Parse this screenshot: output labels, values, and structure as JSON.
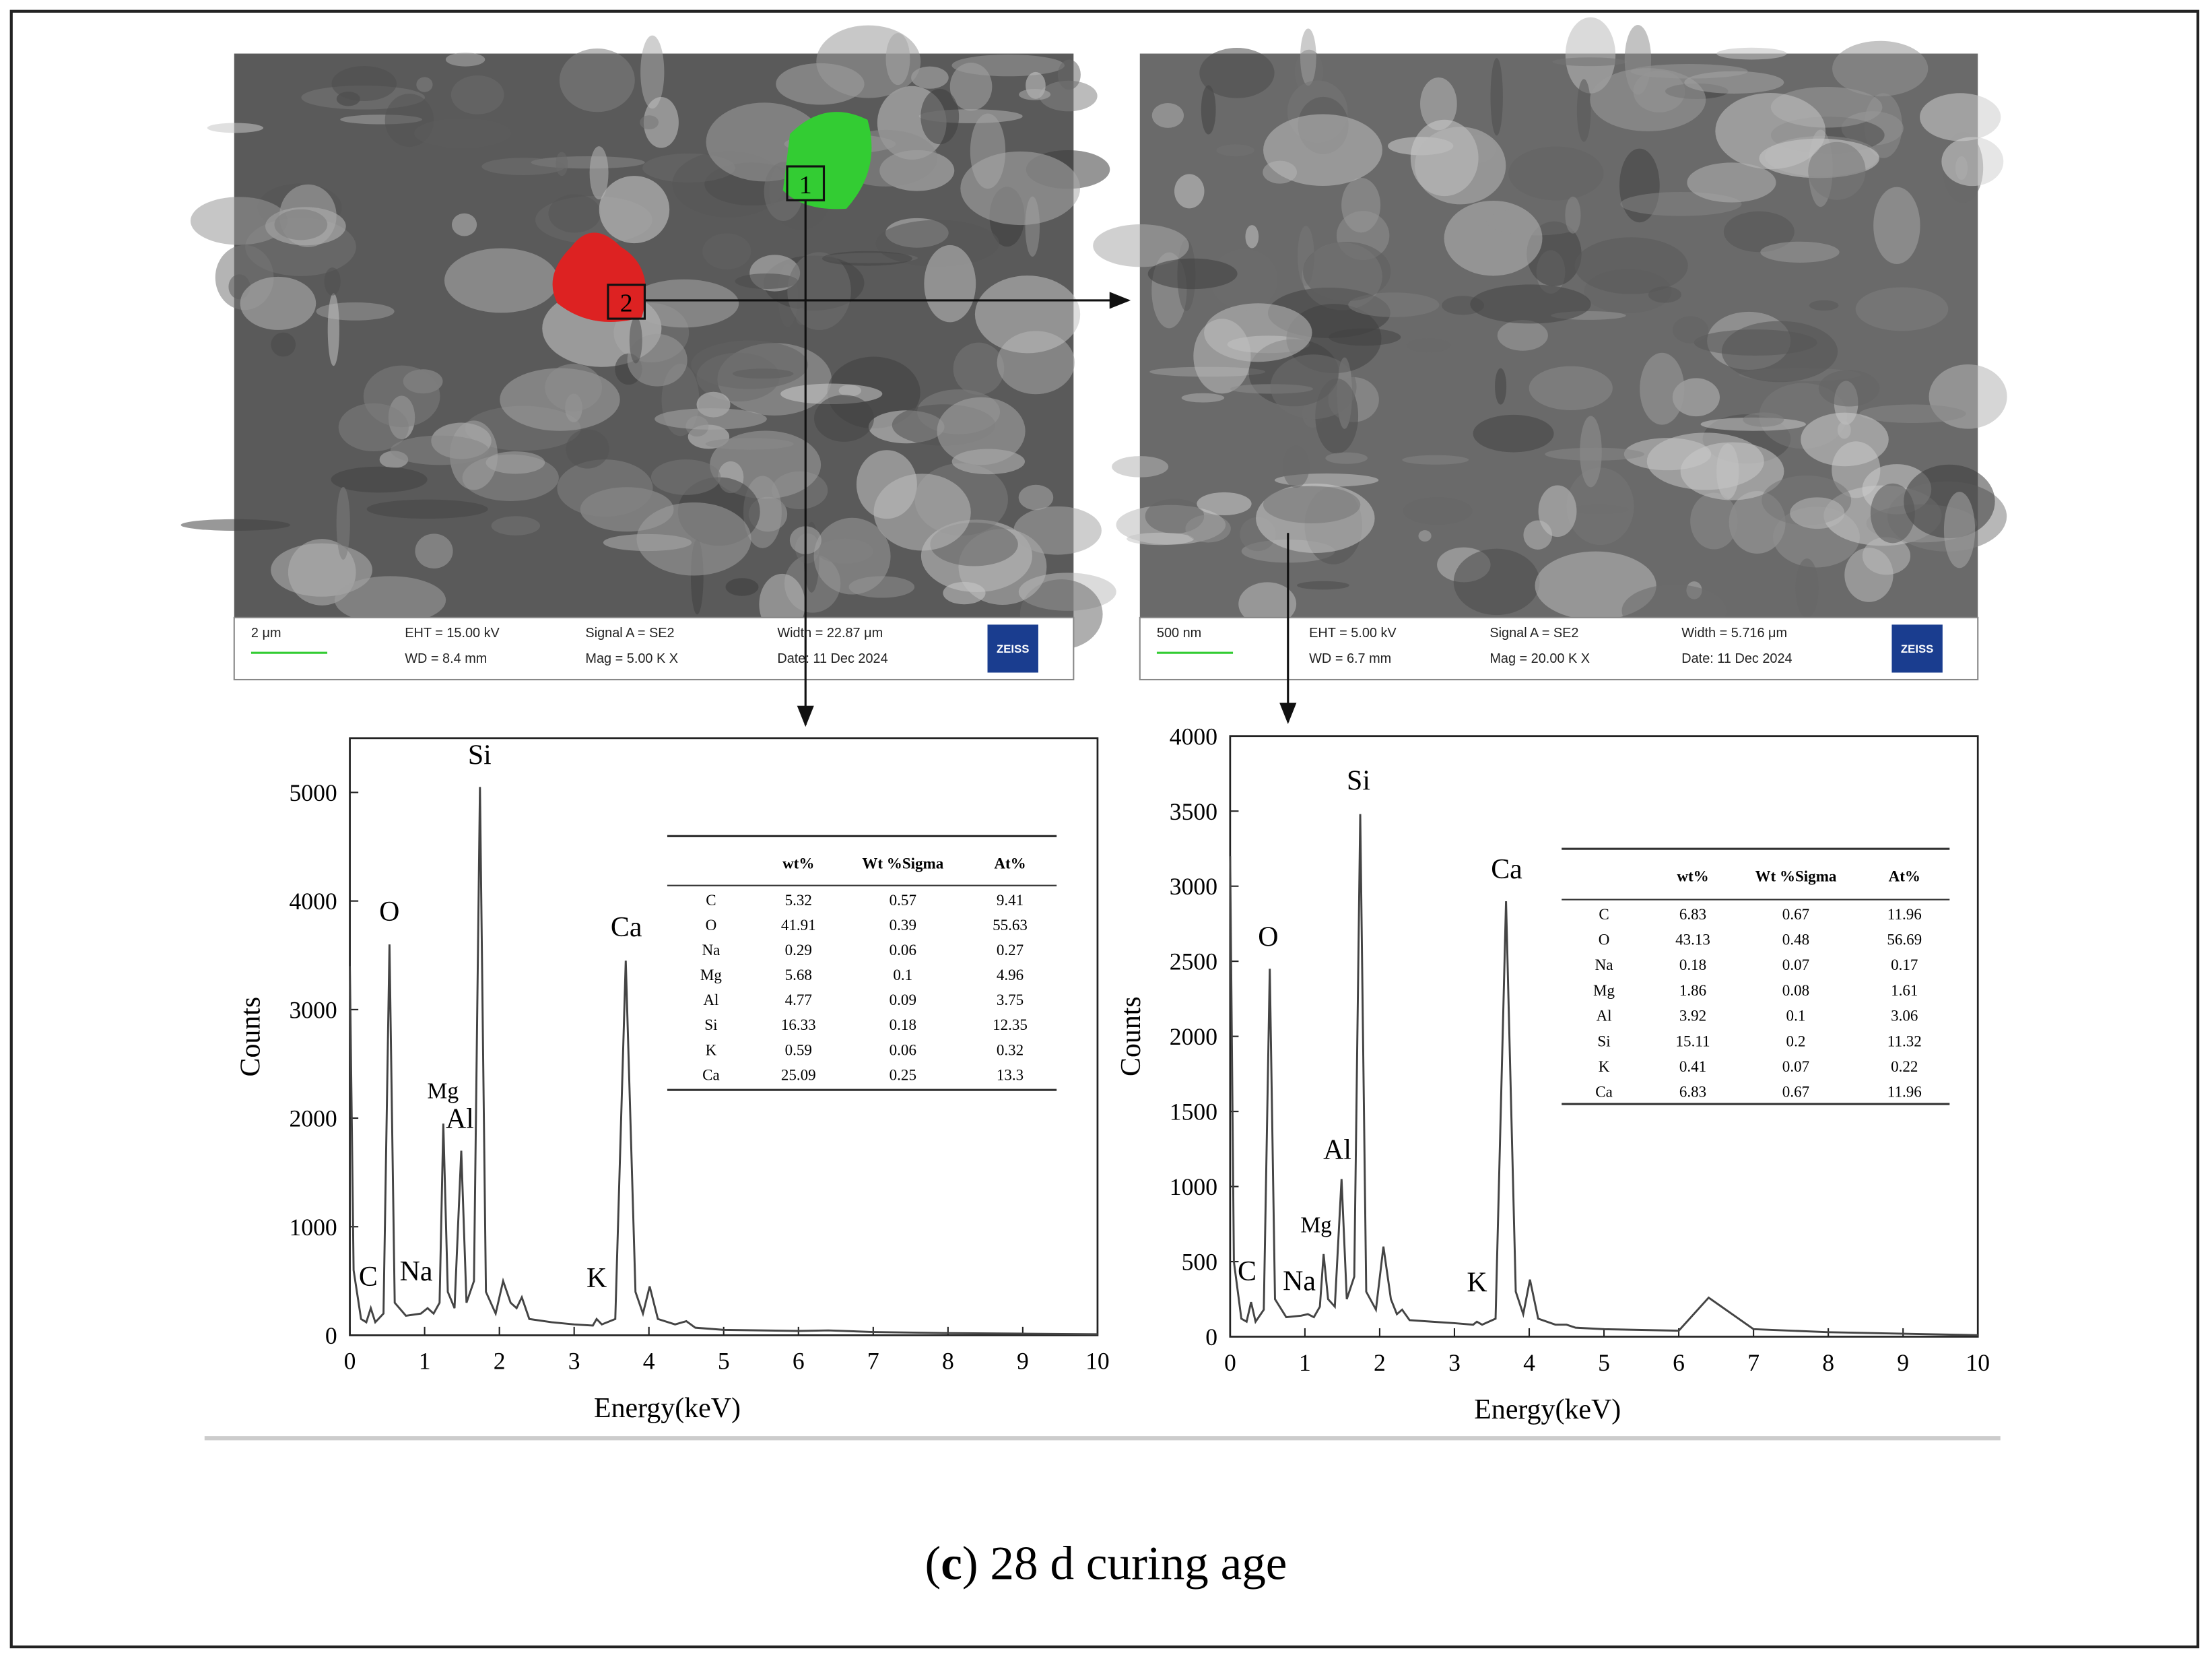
{
  "sem": [
    {
      "scale": "2 μm",
      "eht": "EHT = 15.00 kV",
      "wd": "WD = 8.4 mm",
      "signal": "Signal A = SE2",
      "mag": "Mag = 5.00 K X",
      "width": "Width = 22.87 μm",
      "date": "Date: 11 Dec 2024",
      "logo": "ZEISS",
      "markers": [
        "1",
        "2"
      ]
    },
    {
      "scale": "500 nm",
      "eht": "EHT = 5.00 kV",
      "wd": "WD = 6.7 mm",
      "signal": "Signal A = SE2",
      "mag": "Mag = 20.00 K X",
      "width": "Width = 5.716 μm",
      "date": "Date: 11 Dec 2024",
      "logo": "ZEISS"
    }
  ],
  "chart_data": [
    {
      "type": "line",
      "xlabel": "Energy(keV)",
      "ylabel": "Counts",
      "color": "#444444",
      "x": [
        0,
        0.05,
        0.15,
        0.22,
        0.28,
        0.34,
        0.45,
        0.53,
        0.6,
        0.75,
        0.95,
        1.04,
        1.12,
        1.2,
        1.25,
        1.31,
        1.4,
        1.49,
        1.56,
        1.66,
        1.74,
        1.82,
        1.95,
        2.05,
        2.15,
        2.23,
        2.3,
        2.4,
        2.7,
        3.0,
        3.25,
        3.3,
        3.37,
        3.55,
        3.69,
        3.82,
        3.92,
        4.01,
        4.12,
        4.35,
        4.5,
        4.62,
        5.0,
        6.0,
        6.4,
        7.0,
        8.0,
        9.0,
        10.0
      ],
      "values": [
        3400,
        600,
        150,
        120,
        250,
        120,
        200,
        3600,
        300,
        180,
        200,
        250,
        200,
        300,
        1950,
        400,
        250,
        1700,
        300,
        500,
        5050,
        400,
        200,
        500,
        300,
        250,
        350,
        150,
        120,
        100,
        90,
        150,
        100,
        150,
        3450,
        400,
        200,
        450,
        150,
        100,
        130,
        70,
        50,
        40,
        45,
        30,
        20,
        15,
        10
      ],
      "xlim": [
        0,
        10
      ],
      "xticks": [
        0,
        1,
        2,
        3,
        4,
        5,
        6,
        7,
        8,
        9,
        10
      ],
      "ylim": [
        0,
        5500
      ],
      "yticks": [
        0,
        1000,
        2000,
        3000,
        4000,
        5000
      ],
      "annotations": [
        "C",
        "O",
        "Na",
        "Mg",
        "Al",
        "Si",
        "K",
        "Ca"
      ]
    },
    {
      "type": "line",
      "xlabel": "Energy(keV)",
      "ylabel": "Counts",
      "color": "#444444",
      "x": [
        0,
        0.05,
        0.15,
        0.22,
        0.28,
        0.34,
        0.45,
        0.53,
        0.6,
        0.75,
        0.95,
        1.04,
        1.12,
        1.2,
        1.25,
        1.31,
        1.4,
        1.49,
        1.56,
        1.66,
        1.74,
        1.82,
        1.95,
        2.05,
        2.15,
        2.23,
        2.3,
        2.4,
        2.7,
        3.0,
        3.25,
        3.3,
        3.37,
        3.55,
        3.69,
        3.82,
        3.92,
        4.01,
        4.12,
        4.35,
        4.5,
        4.62,
        5.0,
        6.0,
        6.4,
        7.0,
        8.0,
        9.0,
        10.0
      ],
      "values": [
        3200,
        500,
        120,
        100,
        230,
        100,
        180,
        2450,
        250,
        130,
        140,
        150,
        130,
        200,
        550,
        250,
        200,
        1050,
        250,
        400,
        3480,
        300,
        180,
        600,
        250,
        150,
        180,
        110,
        100,
        90,
        80,
        100,
        80,
        120,
        2900,
        300,
        150,
        380,
        120,
        80,
        80,
        60,
        50,
        40,
        260,
        50,
        30,
        20,
        10
      ],
      "xlim": [
        0,
        10
      ],
      "xticks": [
        0,
        1,
        2,
        3,
        4,
        5,
        6,
        7,
        8,
        9,
        10
      ],
      "ylim": [
        0,
        4000
      ],
      "yticks": [
        0,
        500,
        1000,
        1500,
        2000,
        2500,
        3000,
        3500,
        4000
      ],
      "annotations": [
        "C",
        "O",
        "Na",
        "Mg",
        "Al",
        "Si",
        "K",
        "Ca"
      ]
    }
  ],
  "tables": [
    {
      "columns": [
        "wt%",
        "Wt %Sigma",
        "At%"
      ],
      "rows": [
        [
          "C",
          "5.32",
          "0.57",
          "9.41"
        ],
        [
          "O",
          "41.91",
          "0.39",
          "55.63"
        ],
        [
          "Na",
          "0.29",
          "0.06",
          "0.27"
        ],
        [
          "Mg",
          "5.68",
          "0.1",
          "4.96"
        ],
        [
          "Al",
          "4.77",
          "0.09",
          "3.75"
        ],
        [
          "Si",
          "16.33",
          "0.18",
          "12.35"
        ],
        [
          "K",
          "0.59",
          "0.06",
          "0.32"
        ],
        [
          "Ca",
          "25.09",
          "0.25",
          "13.3"
        ]
      ]
    },
    {
      "columns": [
        "wt%",
        "Wt %Sigma",
        "At%"
      ],
      "rows": [
        [
          "C",
          "6.83",
          "0.67",
          "11.96"
        ],
        [
          "O",
          "43.13",
          "0.48",
          "56.69"
        ],
        [
          "Na",
          "0.18",
          "0.07",
          "0.17"
        ],
        [
          "Mg",
          "1.86",
          "0.08",
          "1.61"
        ],
        [
          "Al",
          "3.92",
          "0.1",
          "3.06"
        ],
        [
          "Si",
          "15.11",
          "0.2",
          "11.32"
        ],
        [
          "K",
          "0.41",
          "0.07",
          "0.22"
        ],
        [
          "Ca",
          "6.83",
          "0.67",
          "11.96"
        ]
      ]
    }
  ],
  "caption": {
    "open": "(",
    "label": "c",
    "text": ") 28 d curing age"
  }
}
